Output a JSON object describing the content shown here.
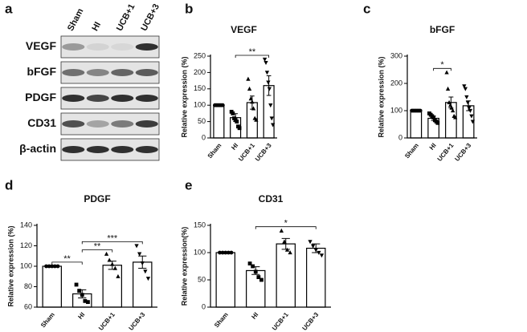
{
  "blot": {
    "panel": "a",
    "lanes": [
      "Sham",
      "HI",
      "UCB+1",
      "UCB+3"
    ],
    "rows": [
      "VEGF",
      "bFGF",
      "PDGF",
      "CD31",
      "β-actin"
    ]
  },
  "chart_data": [
    {
      "type": "bar",
      "panel": "b",
      "title": "VEGF",
      "ylabel": "Relative expression (%)",
      "categories": [
        "Sham",
        "HI",
        "UCB+1",
        "UCB+3"
      ],
      "values": [
        100,
        62,
        108,
        160
      ],
      "errors": [
        0,
        12,
        20,
        30
      ],
      "points": [
        [
          100,
          100,
          100,
          100,
          100,
          100,
          100
        ],
        [
          80,
          75,
          60,
          55,
          50,
          35,
          30
        ],
        [
          180,
          150,
          120,
          110,
          90,
          60,
          55
        ],
        [
          240,
          230,
          200,
          170,
          150,
          100,
          60,
          40
        ]
      ],
      "markers": [
        "circle",
        "square",
        "triangle-up",
        "triangle-down"
      ],
      "color": "#000000",
      "bar_fill": "#ffffff",
      "ylim": [
        0,
        250
      ],
      "yticks": [
        0,
        50,
        100,
        150,
        200,
        250
      ],
      "significance": [
        {
          "between": [
            "HI",
            "UCB+3"
          ],
          "label": "**"
        }
      ]
    },
    {
      "type": "bar",
      "panel": "c",
      "title": "bFGF",
      "ylabel": "Relative expression (%)",
      "categories": [
        "Sham",
        "HI",
        "UCB+1",
        "UCB+3"
      ],
      "values": [
        100,
        72,
        130,
        118
      ],
      "errors": [
        0,
        8,
        20,
        18
      ],
      "points": [
        [
          100,
          100,
          100,
          100,
          100,
          100,
          100,
          100
        ],
        [
          90,
          85,
          80,
          75,
          65,
          60,
          55
        ],
        [
          240,
          180,
          130,
          120,
          110,
          100,
          80,
          75
        ],
        [
          190,
          180,
          150,
          130,
          110,
          100,
          80,
          60
        ]
      ],
      "markers": [
        "circle",
        "square",
        "triangle-up",
        "triangle-down"
      ],
      "color": "#000000",
      "bar_fill": "#ffffff",
      "ylim": [
        0,
        300
      ],
      "yticks": [
        0,
        100,
        200,
        300
      ],
      "significance": [
        {
          "between": [
            "HI",
            "UCB+1"
          ],
          "label": "*"
        }
      ]
    },
    {
      "type": "bar",
      "panel": "d",
      "title": "PDGF",
      "ylabel": "Relative expression (%)",
      "categories": [
        "Sham",
        "HI",
        "UCB+1",
        "UCB+3"
      ],
      "values": [
        100,
        73,
        101,
        104
      ],
      "errors": [
        0,
        4,
        4,
        6
      ],
      "points": [
        [
          100,
          100,
          100,
          100,
          100
        ],
        [
          82,
          76,
          72,
          66,
          65
        ],
        [
          112,
          106,
          102,
          98,
          90
        ],
        [
          120,
          112,
          103,
          95,
          88
        ]
      ],
      "markers": [
        "circle",
        "square",
        "triangle-up",
        "triangle-down"
      ],
      "color": "#000000",
      "bar_fill": "#ffffff",
      "ylim": [
        60,
        140
      ],
      "yticks": [
        60,
        80,
        100,
        120,
        140
      ],
      "significance": [
        {
          "between": [
            "Sham",
            "HI"
          ],
          "label": "**"
        },
        {
          "between": [
            "HI",
            "UCB+1"
          ],
          "label": "**"
        },
        {
          "between": [
            "HI",
            "UCB+3"
          ],
          "label": "***"
        }
      ]
    },
    {
      "type": "bar",
      "panel": "e",
      "title": "CD31",
      "ylabel": "Relative expression(%)",
      "categories": [
        "Sham",
        "HI",
        "UCB+1",
        "UCB+3"
      ],
      "values": [
        100,
        67,
        116,
        108
      ],
      "errors": [
        0,
        7,
        10,
        8
      ],
      "points": [
        [
          100,
          100,
          100,
          100,
          100
        ],
        [
          80,
          75,
          65,
          55,
          50
        ],
        [
          140,
          120,
          105,
          100
        ],
        [
          120,
          112,
          105,
          100,
          95
        ]
      ],
      "markers": [
        "circle",
        "square",
        "triangle-up",
        "triangle-down"
      ],
      "color": "#000000",
      "bar_fill": "#ffffff",
      "ylim": [
        0,
        150
      ],
      "yticks": [
        0,
        50,
        100,
        150
      ],
      "significance": [
        {
          "between": [
            "HI",
            "UCB+3"
          ],
          "label": "*"
        }
      ]
    }
  ]
}
